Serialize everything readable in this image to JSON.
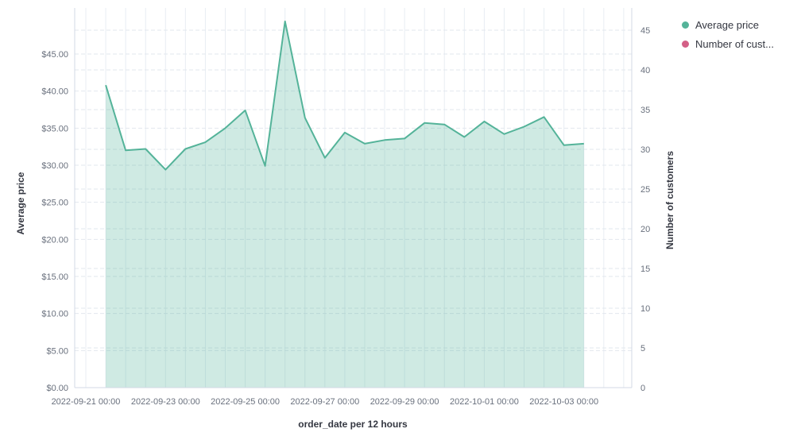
{
  "chart_data": {
    "type": "area",
    "title": "",
    "xlabel": "order_date per 12 hours",
    "ylabel_left": "Average price",
    "ylabel_right": "Number of customers",
    "grid": true,
    "legend_position": "top-right",
    "x_tick_labels": [
      "2022-09-21 00:00",
      "2022-09-23 00:00",
      "2022-09-25 00:00",
      "2022-09-27 00:00",
      "2022-09-29 00:00",
      "2022-10-01 00:00",
      "2022-10-03 00:00"
    ],
    "left_axis_tick_labels": [
      "$0.00",
      "$5.00",
      "$10.00",
      "$15.00",
      "$20.00",
      "$25.00",
      "$30.00",
      "$35.00",
      "$40.00",
      "$45.00"
    ],
    "left_axis_tick_values": [
      0,
      5,
      10,
      15,
      20,
      25,
      30,
      35,
      40,
      45
    ],
    "right_axis_tick_labels": [
      "0",
      "5",
      "10",
      "15",
      "20",
      "25",
      "30",
      "35",
      "40",
      "45"
    ],
    "right_axis_tick_values": [
      0,
      5,
      10,
      15,
      20,
      25,
      30,
      35,
      40,
      45
    ],
    "ylim_left": [
      0,
      51
    ],
    "ylim_right": [
      0,
      48
    ],
    "series": [
      {
        "name": "Average price",
        "axis": "left",
        "color": "#54B399",
        "fill_opacity": 0.28,
        "x": [
          "2022-09-21 12:00",
          "2022-09-22 00:00",
          "2022-09-22 12:00",
          "2022-09-23 00:00",
          "2022-09-23 12:00",
          "2022-09-24 00:00",
          "2022-09-24 12:00",
          "2022-09-25 00:00",
          "2022-09-25 12:00",
          "2022-09-26 00:00",
          "2022-09-26 12:00",
          "2022-09-27 00:00",
          "2022-09-27 12:00",
          "2022-09-28 00:00",
          "2022-09-28 12:00",
          "2022-09-29 00:00",
          "2022-09-29 12:00",
          "2022-09-30 00:00",
          "2022-09-30 12:00",
          "2022-10-01 00:00",
          "2022-10-01 12:00",
          "2022-10-02 00:00",
          "2022-10-02 12:00",
          "2022-10-03 00:00",
          "2022-10-03 12:00"
        ],
        "values": [
          40.8,
          32.0,
          32.2,
          29.4,
          32.2,
          33.1,
          35.0,
          37.4,
          29.9,
          49.4,
          36.4,
          31.0,
          34.4,
          32.9,
          33.4,
          33.6,
          35.7,
          35.5,
          33.8,
          35.9,
          34.2,
          35.2,
          36.5,
          32.7,
          32.9
        ]
      }
    ],
    "legend": [
      {
        "label": "Average price",
        "color": "#54B399"
      },
      {
        "label": "Number of cust...",
        "color": "#D36086"
      }
    ],
    "colors": {
      "series_green": "#54B399",
      "series_pink": "#D36086",
      "tick_text": "#69707d",
      "axis_title_text": "#343741",
      "axis_line": "#d3dae6",
      "grid_vertical": "#e8edf3",
      "grid_horizontal": "#e2e7ee"
    }
  }
}
